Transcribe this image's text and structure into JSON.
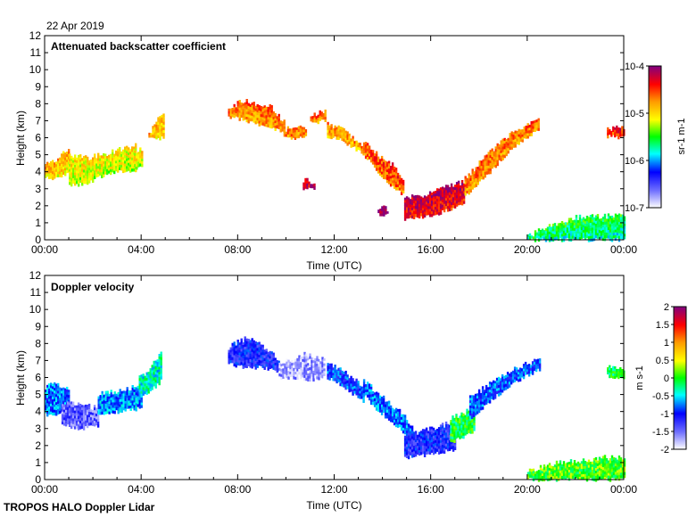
{
  "figure": {
    "date": "22 Apr 2019",
    "footer": "TROPOS HALO Doppler Lidar"
  },
  "chart_data": [
    {
      "type": "heatmap",
      "title": "Attenuated backscatter coefficient",
      "xlabel": "Time (UTC)",
      "ylabel": "Height (km)",
      "x_ticks": [
        "00:00",
        "04:00",
        "08:00",
        "12:00",
        "16:00",
        "20:00",
        "00:00"
      ],
      "x_range_hours": [
        0,
        24
      ],
      "y_ticks": [
        0,
        1,
        2,
        3,
        4,
        5,
        6,
        7,
        8,
        9,
        10,
        11,
        12
      ],
      "ylim": [
        0,
        12
      ],
      "colorbar": {
        "scale": "log",
        "ticks": [
          "10-7",
          "10-6",
          "10-5",
          "10-4"
        ],
        "tick_values": [
          1e-07,
          1e-06,
          1e-05,
          0.0001
        ],
        "label": "sr-1 m-1",
        "colors": [
          "#ffffff",
          "#7070ff",
          "#0000ff",
          "#00ffff",
          "#00ff00",
          "#ffff00",
          "#ff9900",
          "#ff0000",
          "#800080"
        ]
      },
      "layers": [
        {
          "t0": 0.0,
          "t1": 1.0,
          "top": [
            4.4,
            4.6,
            5.0,
            5.3
          ],
          "bottom": [
            3.7,
            3.6,
            3.8,
            3.9
          ],
          "level": 0.68
        },
        {
          "t0": 1.0,
          "t1": 3.8,
          "top": [
            5.0,
            4.8,
            5.0,
            5.3,
            5.6
          ],
          "bottom": [
            3.2,
            3.3,
            3.8,
            4.0,
            4.1
          ],
          "level": 0.62
        },
        {
          "t0": 3.7,
          "t1": 4.0,
          "top": [
            5.2,
            5.3
          ],
          "bottom": [
            4.2,
            4.3
          ],
          "level": 0.62
        },
        {
          "t0": 4.3,
          "t1": 4.9,
          "top": [
            6.3,
            7.5
          ],
          "bottom": [
            5.9,
            6.0
          ],
          "level": 0.68
        },
        {
          "t0": 7.6,
          "t1": 9.9,
          "top": [
            7.7,
            8.2,
            8.0,
            7.9,
            6.9
          ],
          "bottom": [
            7.2,
            7.1,
            6.8,
            6.7,
            6.2
          ],
          "level": 0.76
        },
        {
          "t0": 9.9,
          "t1": 10.8,
          "top": [
            6.5,
            6.6
          ],
          "bottom": [
            6.0,
            6.0
          ],
          "level": 0.76
        },
        {
          "t0": 11.0,
          "t1": 11.6,
          "top": [
            7.3,
            7.6
          ],
          "bottom": [
            6.9,
            7.0
          ],
          "level": 0.76
        },
        {
          "t0": 11.7,
          "t1": 13.2,
          "top": [
            6.8,
            6.6,
            6.0,
            5.5
          ],
          "bottom": [
            6.1,
            5.9,
            5.5,
            5.0
          ],
          "level": 0.72
        },
        {
          "t0": 13.2,
          "t1": 14.9,
          "top": [
            5.8,
            5.2,
            4.7,
            4.3,
            3.5
          ],
          "bottom": [
            5.0,
            4.3,
            3.6,
            3.0,
            2.6
          ],
          "level": 0.8
        },
        {
          "t0": 14.9,
          "t1": 17.4,
          "top": [
            2.4,
            2.6,
            2.9,
            3.2,
            3.4
          ],
          "bottom": [
            1.2,
            1.3,
            1.5,
            1.8,
            2.1
          ],
          "level": 0.9
        },
        {
          "t0": 17.4,
          "t1": 20.5,
          "top": [
            3.6,
            4.8,
            5.9,
            6.6,
            7.1
          ],
          "bottom": [
            2.6,
            3.6,
            4.8,
            5.8,
            6.6
          ],
          "level": 0.76
        },
        {
          "t0": 23.3,
          "t1": 24.0,
          "top": [
            6.6,
            6.5
          ],
          "bottom": [
            6.1,
            6.0
          ],
          "level": 0.84
        },
        {
          "t0": 10.7,
          "t1": 11.2,
          "top": [
            3.5,
            3.4
          ],
          "bottom": [
            3.0,
            3.0
          ],
          "level": 0.92
        },
        {
          "t0": 13.8,
          "t1": 14.2,
          "top": [
            1.9,
            1.8
          ],
          "bottom": [
            1.5,
            1.5
          ],
          "level": 0.96
        },
        {
          "t0": 20.0,
          "t1": 24.0,
          "top": [
            0.2,
            0.9,
            1.3,
            1.4,
            1.4
          ],
          "bottom": [
            0.0,
            0.0,
            0.0,
            0.0,
            0.0
          ],
          "level": 0.44
        }
      ]
    },
    {
      "type": "heatmap",
      "title": "Doppler velocity",
      "xlabel": "Time (UTC)",
      "ylabel": "Height (km)",
      "x_ticks": [
        "00:00",
        "04:00",
        "08:00",
        "12:00",
        "16:00",
        "20:00",
        "00:00"
      ],
      "x_range_hours": [
        0,
        24
      ],
      "y_ticks": [
        0,
        1,
        2,
        3,
        4,
        5,
        6,
        7,
        8,
        9,
        10,
        11,
        12
      ],
      "ylim": [
        0,
        12
      ],
      "colorbar": {
        "scale": "linear",
        "ticks": [
          "-2",
          "-1.5",
          "-1",
          "-0.5",
          "0",
          "0.5",
          "1",
          "1.5",
          "2"
        ],
        "tick_values": [
          -2,
          -1.5,
          -1,
          -0.5,
          0,
          0.5,
          1,
          1.5,
          2
        ],
        "label": "m s-1",
        "colors": [
          "#ffffff",
          "#7070ff",
          "#0000ff",
          "#00ffff",
          "#00ff00",
          "#ffff00",
          "#ff9900",
          "#ff0000",
          "#800080"
        ]
      },
      "layers": [
        {
          "t0": 0.0,
          "t1": 1.0,
          "top": [
            5.4,
            5.6,
            5.5,
            5.2
          ],
          "bottom": [
            3.8,
            3.7,
            3.9,
            4.0
          ],
          "level": 0.3
        },
        {
          "t0": 0.7,
          "t1": 2.2,
          "top": [
            4.6,
            4.4,
            4.2
          ],
          "bottom": [
            3.2,
            3.0,
            3.2
          ],
          "level": 0.14
        },
        {
          "t0": 2.2,
          "t1": 4.0,
          "top": [
            5.0,
            5.2,
            5.6
          ],
          "bottom": [
            3.9,
            4.0,
            4.2
          ],
          "level": 0.32
        },
        {
          "t0": 3.9,
          "t1": 4.8,
          "top": [
            6.0,
            6.5,
            7.5
          ],
          "bottom": [
            4.9,
            5.2,
            5.8
          ],
          "level": 0.4
        },
        {
          "t0": 7.6,
          "t1": 9.7,
          "top": [
            7.8,
            8.3,
            7.9,
            7.0
          ],
          "bottom": [
            6.8,
            6.6,
            6.6,
            6.3
          ],
          "level": 0.22
        },
        {
          "t0": 9.7,
          "t1": 11.6,
          "top": [
            6.8,
            7.4,
            7.1
          ],
          "bottom": [
            6.0,
            5.9,
            5.9
          ],
          "level": 0.08
        },
        {
          "t0": 11.7,
          "t1": 13.2,
          "top": [
            6.8,
            6.5,
            6.0,
            5.5
          ],
          "bottom": [
            6.0,
            5.6,
            5.1,
            4.6
          ],
          "level": 0.27
        },
        {
          "t0": 13.2,
          "t1": 15.2,
          "top": [
            5.8,
            5.2,
            4.6,
            4.0,
            3.2
          ],
          "bottom": [
            5.0,
            4.2,
            3.6,
            3.0,
            2.4
          ],
          "level": 0.3
        },
        {
          "t0": 14.9,
          "t1": 17.0,
          "top": [
            2.6,
            3.0,
            3.4
          ],
          "bottom": [
            1.3,
            1.5,
            1.8
          ],
          "level": 0.22
        },
        {
          "t0": 16.8,
          "t1": 17.8,
          "top": [
            3.6,
            4.2
          ],
          "bottom": [
            2.2,
            2.8
          ],
          "level": 0.48
        },
        {
          "t0": 17.6,
          "t1": 20.5,
          "top": [
            4.8,
            5.8,
            6.6,
            7.1
          ],
          "bottom": [
            3.6,
            4.8,
            5.8,
            6.5
          ],
          "level": 0.28
        },
        {
          "t0": 23.3,
          "t1": 24.0,
          "top": [
            6.7,
            6.5
          ],
          "bottom": [
            6.1,
            6.0
          ],
          "level": 0.46
        },
        {
          "t0": 20.0,
          "t1": 24.0,
          "top": [
            0.5,
            0.9,
            1.1,
            1.3,
            1.3
          ],
          "bottom": [
            0.0,
            0.0,
            0.0,
            0.0,
            0.0
          ],
          "level": 0.52
        }
      ]
    }
  ]
}
